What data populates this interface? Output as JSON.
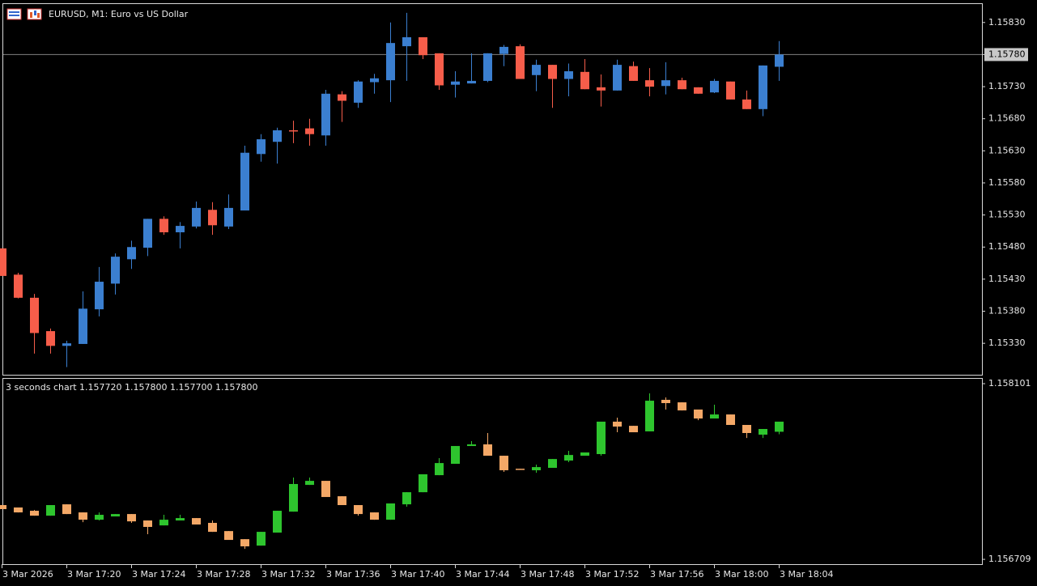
{
  "chart_data": [
    {
      "type": "candlestick",
      "title": "EURUSD, M1:  Euro vs US Dollar",
      "up_color": "#3b7fd0",
      "down_color": "#f65d4a",
      "ylim": [
        1.15281,
        1.1586
      ],
      "yticks": [
        {
          "value": 1.1583,
          "label": "1.15830"
        },
        {
          "value": 1.1578,
          "label": "1.15780"
        },
        {
          "value": 1.1573,
          "label": "1.15730"
        },
        {
          "value": 1.1568,
          "label": "1.15680"
        },
        {
          "value": 1.1563,
          "label": "1.15630"
        },
        {
          "value": 1.1558,
          "label": "1.15580"
        },
        {
          "value": 1.1553,
          "label": "1.15530"
        },
        {
          "value": 1.1548,
          "label": "1.15480"
        },
        {
          "value": 1.1543,
          "label": "1.15430"
        },
        {
          "value": 1.1538,
          "label": "1.15380"
        },
        {
          "value": 1.1533,
          "label": "1.15330"
        }
      ],
      "price_line": {
        "value": 1.1578,
        "label": "1.15780"
      },
      "open": [
        1.15478,
        1.15437,
        1.15401,
        1.15349,
        1.15326,
        1.15329,
        1.15383,
        1.15423,
        1.15461,
        1.15479,
        1.15524,
        1.15503,
        1.15512,
        1.15538,
        1.15512,
        1.15537,
        1.15625,
        1.15644,
        1.15662,
        1.15665,
        1.15654,
        1.15718,
        1.15705,
        1.15737,
        1.1574,
        1.15793,
        1.15807,
        1.15782,
        1.15733,
        1.15735,
        1.15739,
        1.15781,
        1.15793,
        1.15748,
        1.15764,
        1.15742,
        1.15753,
        1.15729,
        1.15724,
        1.15762,
        1.1574,
        1.15731,
        1.1574,
        1.15729,
        1.15721,
        1.15738,
        1.1571,
        1.15695,
        1.15761
      ],
      "high": [
        1.15478,
        1.1544,
        1.15407,
        1.15353,
        1.15334,
        1.15411,
        1.15449,
        1.1547,
        1.1549,
        1.15524,
        1.15528,
        1.15519,
        1.15551,
        1.1555,
        1.15562,
        1.15638,
        1.15656,
        1.15666,
        1.15677,
        1.1568,
        1.15725,
        1.15723,
        1.1574,
        1.1575,
        1.1583,
        1.15845,
        1.15807,
        1.15782,
        1.15754,
        1.15782,
        1.15782,
        1.15795,
        1.15796,
        1.15772,
        1.15764,
        1.15766,
        1.15773,
        1.15749,
        1.15772,
        1.15769,
        1.15759,
        1.15768,
        1.15744,
        1.15729,
        1.15742,
        1.15738,
        1.15724,
        1.15763,
        1.15801
      ],
      "low": [
        1.15435,
        1.154,
        1.15314,
        1.15314,
        1.15293,
        1.15329,
        1.15372,
        1.15406,
        1.15446,
        1.15466,
        1.15499,
        1.15478,
        1.15509,
        1.15499,
        1.15508,
        1.15537,
        1.15613,
        1.1561,
        1.15642,
        1.15638,
        1.15638,
        1.15675,
        1.15697,
        1.15719,
        1.15706,
        1.15739,
        1.15773,
        1.15725,
        1.15713,
        1.15735,
        1.15737,
        1.15762,
        1.15742,
        1.15723,
        1.15697,
        1.15715,
        1.15726,
        1.15699,
        1.15724,
        1.15739,
        1.15715,
        1.15718,
        1.15726,
        1.15719,
        1.1572,
        1.1571,
        1.15695,
        1.15684,
        1.15739
      ],
      "close": [
        1.15435,
        1.15401,
        1.15346,
        1.15326,
        1.1533,
        1.15384,
        1.15426,
        1.15465,
        1.1548,
        1.15524,
        1.15503,
        1.15513,
        1.15541,
        1.15514,
        1.15541,
        1.15627,
        1.15648,
        1.15662,
        1.15661,
        1.15656,
        1.15719,
        1.15708,
        1.15738,
        1.15743,
        1.15798,
        1.15807,
        1.15779,
        1.15732,
        1.15738,
        1.15739,
        1.15782,
        1.15792,
        1.15742,
        1.15764,
        1.15742,
        1.15754,
        1.15726,
        1.15724,
        1.15764,
        1.15739,
        1.1573,
        1.1574,
        1.15726,
        1.15719,
        1.15739,
        1.1571,
        1.15695,
        1.15763,
        1.1578
      ]
    },
    {
      "type": "candlestick",
      "title": "3 seconds chart 1.157720 1.157800 1.157700 1.157800",
      "up_color": "#2ec52e",
      "down_color": "#f4a867",
      "ylim": [
        1.156671,
        1.158146
      ],
      "yticks": [
        1.158101,
        1.156709
      ],
      "categories": [
        "3 Mar 2026",
        null,
        null,
        null,
        "3 Mar 17:20",
        null,
        null,
        null,
        "3 Mar 17:24",
        null,
        null,
        null,
        "3 Mar 17:28",
        null,
        null,
        null,
        "3 Mar 17:32",
        null,
        null,
        null,
        "3 Mar 17:36",
        null,
        null,
        null,
        "3 Mar 17:40",
        null,
        null,
        null,
        "3 Mar 17:44",
        null,
        null,
        null,
        "3 Mar 17:48",
        null,
        null,
        null,
        "3 Mar 17:52",
        null,
        null,
        null,
        "3 Mar 17:56",
        null,
        null,
        null,
        "3 Mar 18:00",
        null,
        null,
        null,
        "3 Mar 18:04"
      ],
      "open": [
        1.157139,
        1.15712,
        1.157094,
        1.157055,
        1.157145,
        1.157081,
        1.157023,
        1.157049,
        1.157068,
        1.157017,
        1.156978,
        1.157017,
        1.157036,
        1.156998,
        1.156933,
        1.156869,
        1.156818,
        1.156921,
        1.157087,
        1.157299,
        1.157331,
        1.157209,
        1.157139,
        1.157081,
        1.157023,
        1.157145,
        1.157241,
        1.157376,
        1.157466,
        1.157607,
        1.15762,
        1.15753,
        1.157427,
        1.157415,
        1.157434,
        1.157492,
        1.15753,
        1.157543,
        1.1578,
        1.157767,
        1.157723,
        1.157973,
        1.157953,
        1.157896,
        1.157825,
        1.157857,
        1.157774,
        1.157697,
        1.15772
      ],
      "high": [
        1.157139,
        1.15712,
        1.1571,
        1.157139,
        1.157145,
        1.157081,
        1.157081,
        1.157068,
        1.157068,
        1.157017,
        1.157062,
        1.157062,
        1.157036,
        1.157017,
        1.156933,
        1.156869,
        1.156927,
        1.157094,
        1.157357,
        1.157357,
        1.157331,
        1.157209,
        1.157139,
        1.157081,
        1.157152,
        1.157241,
        1.157383,
        1.157511,
        1.157607,
        1.157646,
        1.15771,
        1.15753,
        1.157427,
        1.15746,
        1.157504,
        1.157569,
        1.157556,
        1.1578,
        1.157832,
        1.157767,
        1.158024,
        1.157992,
        1.157953,
        1.157896,
        1.157934,
        1.157857,
        1.157774,
        1.157742,
        1.1578
      ],
      "low": [
        1.157107,
        1.157081,
        1.157055,
        1.157055,
        1.157068,
        1.157004,
        1.157017,
        1.157049,
        1.156998,
        1.156908,
        1.156978,
        1.157017,
        1.156985,
        1.156927,
        1.156863,
        1.156792,
        1.156818,
        1.156921,
        1.157087,
        1.157299,
        1.157203,
        1.157139,
        1.157055,
        1.157023,
        1.157023,
        1.157126,
        1.157241,
        1.157376,
        1.157466,
        1.157607,
        1.15753,
        1.157402,
        1.157421,
        1.157395,
        1.157434,
        1.157479,
        1.15753,
        1.15753,
        1.157716,
        1.157716,
        1.157723,
        1.157896,
        1.157889,
        1.157812,
        1.157825,
        1.157774,
        1.157671,
        1.157671,
        1.1577
      ],
      "close": [
        1.157107,
        1.157081,
        1.157055,
        1.157139,
        1.157068,
        1.157023,
        1.157062,
        1.157068,
        1.15701,
        1.156966,
        1.157023,
        1.157036,
        1.156985,
        1.156927,
        1.156863,
        1.156812,
        1.156927,
        1.157094,
        1.157306,
        1.157331,
        1.157203,
        1.157139,
        1.157068,
        1.157023,
        1.157152,
        1.157241,
        1.157383,
        1.157472,
        1.157607,
        1.15762,
        1.15753,
        1.157415,
        1.157421,
        1.15744,
        1.157504,
        1.157536,
        1.157556,
        1.1578,
        1.157761,
        1.157716,
        1.157966,
        1.157947,
        1.157889,
        1.157825,
        1.157857,
        1.157774,
        1.15771,
        1.157742,
        1.1578
      ]
    }
  ]
}
